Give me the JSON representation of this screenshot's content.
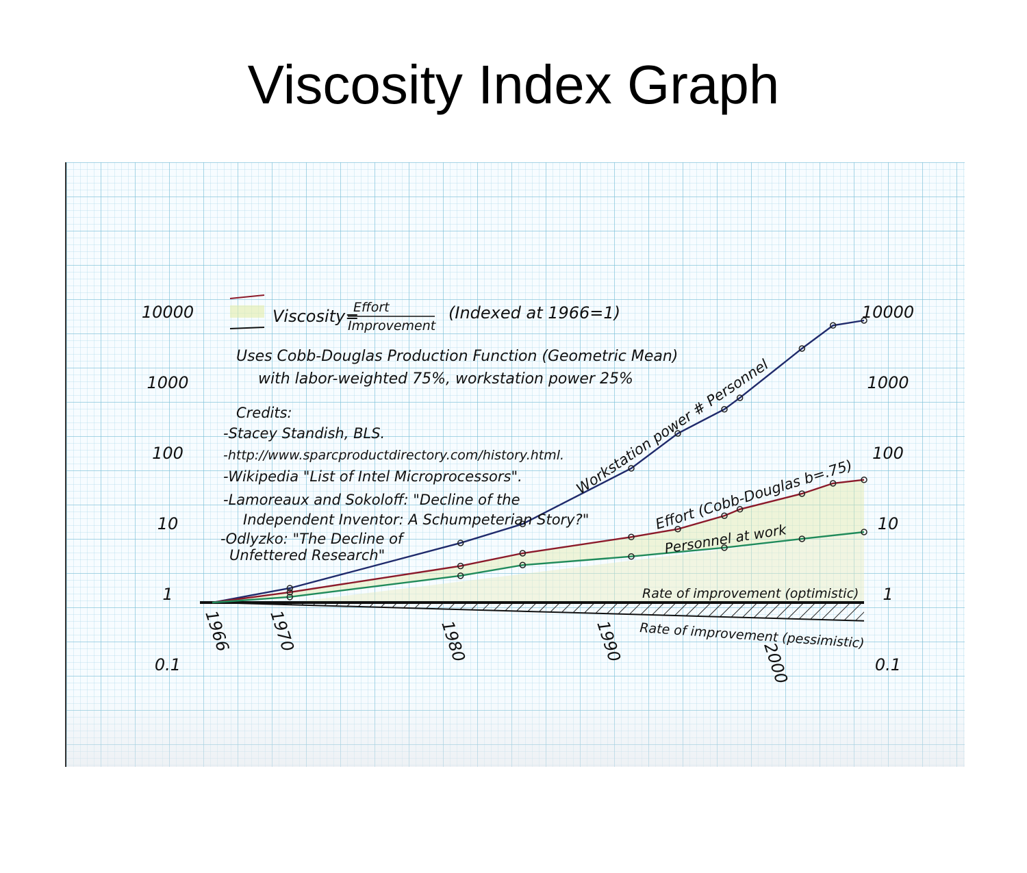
{
  "title": "Viscosity Index Graph",
  "chart_data": {
    "type": "line",
    "yscale": "log",
    "ylim": [
      0.1,
      10000
    ],
    "xlim": [
      1966,
      2007
    ],
    "y_ticks_left": [
      "10000",
      "1000",
      "100",
      "10",
      "1",
      "0.1"
    ],
    "y_ticks_right": [
      "10000",
      "1000",
      "100",
      "10",
      "1",
      "0.1"
    ],
    "x_ticks": [
      "1966",
      "1970",
      "1980",
      "1990",
      "2000"
    ],
    "series": [
      {
        "name": "Workstation power # Personnel",
        "color": "#1f2a6b",
        "x": [
          1966,
          1971,
          1982,
          1986,
          1993,
          1996,
          1999,
          2000,
          2004,
          2006,
          2008
        ],
        "y": [
          1,
          1.6,
          7,
          13,
          80,
          250,
          550,
          800,
          4000,
          8500,
          10000
        ]
      },
      {
        "name": "Effort (Cobb-Douglas b=.75)",
        "color": "#8b1a2a",
        "x": [
          1966,
          1971,
          1982,
          1986,
          1993,
          1996,
          1999,
          2000,
          2004,
          2006,
          2008
        ],
        "y": [
          1,
          1.4,
          3.3,
          5,
          8.5,
          11,
          17,
          21,
          35,
          49,
          55
        ]
      },
      {
        "name": "Personnel at work",
        "color": "#1f8a5a",
        "x": [
          1966,
          1971,
          1982,
          1986,
          1993,
          1999,
          2004,
          2008
        ],
        "y": [
          1,
          1.2,
          2.4,
          3.4,
          4.5,
          6,
          8,
          10
        ]
      }
    ],
    "reference_lines": [
      {
        "label": "Rate of improvement (optimistic)"
      },
      {
        "label": "Rate of improvement (pessimistic)"
      }
    ],
    "legend": {
      "formula_lhs": "Viscosity=",
      "formula_num": "Effort",
      "formula_den": "Improvement",
      "indexed": "(Indexed at 1966=1)"
    },
    "annotations": [
      "Uses Cobb-Douglas Production Function (Geometric Mean)",
      "with labor-weighted 75%, workstation power 25%"
    ],
    "credits": [
      "Credits:",
      "-Stacey Standish, BLS.",
      "-http://www.sparcproductdirectory.com/history.html.",
      "-Wikipedia \"List of Intel Microprocessors\".",
      "-Lamoreaux and Sokoloff: \"Decline of the",
      "Independent Inventor: A Schumpeterian Story?\"",
      "-Odlyzko: \"The Decline of",
      "Unfettered Research\""
    ],
    "grid": true
  }
}
